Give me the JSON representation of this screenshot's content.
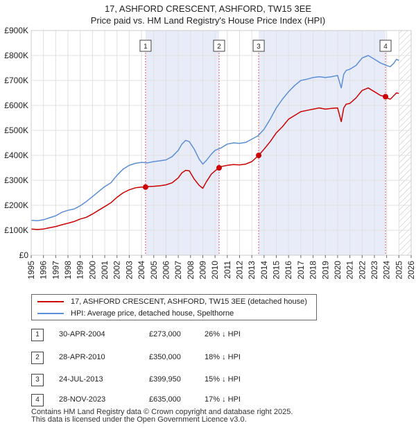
{
  "title": {
    "line1": "17, ASHFORD CRESCENT, ASHFORD, TW15 3EE",
    "line2": "Price paid vs. HM Land Registry's House Price Index (HPI)"
  },
  "colors": {
    "price_paid": "#cc0000",
    "hpi": "#5b8ed6",
    "shade": "#e8ecf8",
    "marker_line": "#e06060"
  },
  "legend": {
    "price_paid_label": "17, ASHFORD CRESCENT, ASHFORD, TW15 3EE (detached house)",
    "hpi_label": "HPI: Average price, detached house, Spelthorne"
  },
  "sales": [
    {
      "num": "1",
      "date": "30-APR-2004",
      "price": "£273,000",
      "hpi": "26% ↓ HPI"
    },
    {
      "num": "2",
      "date": "28-APR-2010",
      "price": "£350,000",
      "hpi": "18% ↓ HPI"
    },
    {
      "num": "3",
      "date": "24-JUL-2013",
      "price": "£399,950",
      "hpi": "15% ↓ HPI"
    },
    {
      "num": "4",
      "date": "28-NOV-2023",
      "price": "£635,000",
      "hpi": "17% ↓ HPI"
    }
  ],
  "footer": {
    "line1": "Contains HM Land Registry data © Crown copyright and database right 2025.",
    "line2": "This data is licensed under the Open Government Licence v3.0."
  },
  "chart_data": {
    "type": "line",
    "xlim": [
      1995,
      2026
    ],
    "ylim": [
      0,
      900000
    ],
    "x_ticks": [
      "1995",
      "1996",
      "1997",
      "1998",
      "1999",
      "2000",
      "2001",
      "2002",
      "2003",
      "2004",
      "2005",
      "2006",
      "2007",
      "2008",
      "2009",
      "2010",
      "2011",
      "2012",
      "2013",
      "2014",
      "2015",
      "2016",
      "2017",
      "2018",
      "2019",
      "2020",
      "2021",
      "2022",
      "2023",
      "2024",
      "2025",
      "2026"
    ],
    "y_ticks": [
      {
        "value": 0,
        "label": "£0"
      },
      {
        "value": 100000,
        "label": "£100K"
      },
      {
        "value": 200000,
        "label": "£200K"
      },
      {
        "value": 300000,
        "label": "£300K"
      },
      {
        "value": 400000,
        "label": "£400K"
      },
      {
        "value": 500000,
        "label": "£500K"
      },
      {
        "value": 600000,
        "label": "£600K"
      },
      {
        "value": 700000,
        "label": "£700K"
      },
      {
        "value": 800000,
        "label": "£800K"
      },
      {
        "value": 900000,
        "label": "£900K"
      }
    ],
    "grid": true,
    "shaded_ranges": [
      [
        2004.33,
        2010.33
      ],
      [
        2013.56,
        2023.91
      ]
    ],
    "future_hatch_from": 2025.0,
    "sale_markers": [
      {
        "label": "1",
        "x": 2004.33,
        "y": 273000
      },
      {
        "label": "2",
        "x": 2010.33,
        "y": 350000
      },
      {
        "label": "3",
        "x": 2013.56,
        "y": 399950
      },
      {
        "label": "4",
        "x": 2023.91,
        "y": 635000
      }
    ],
    "series": [
      {
        "name": "HPI: Average price, detached house, Spelthorne",
        "x": [
          1995,
          1995.5,
          1996,
          1996.5,
          1997,
          1997.5,
          1998,
          1998.5,
          1999,
          1999.5,
          2000,
          2000.5,
          2001,
          2001.5,
          2002,
          2002.5,
          2003,
          2003.5,
          2004,
          2004.5,
          2005,
          2005.5,
          2006,
          2006.5,
          2007,
          2007.3,
          2007.6,
          2007.9,
          2008.3,
          2008.7,
          2009,
          2009.3,
          2009.7,
          2010,
          2010.5,
          2011,
          2011.5,
          2012,
          2012.5,
          2013,
          2013.5,
          2014,
          2014.5,
          2015,
          2015.5,
          2016,
          2016.5,
          2017,
          2017.5,
          2018,
          2018.5,
          2019,
          2019.5,
          2020,
          2020.3,
          2020.5,
          2020.7,
          2021,
          2021.5,
          2022,
          2022.5,
          2023,
          2023.5,
          2024,
          2024.3,
          2024.6,
          2024.8,
          2025
        ],
        "values": [
          140000,
          138000,
          142000,
          150000,
          158000,
          172000,
          180000,
          185000,
          198000,
          215000,
          235000,
          255000,
          275000,
          290000,
          320000,
          345000,
          360000,
          368000,
          372000,
          370000,
          375000,
          378000,
          382000,
          395000,
          420000,
          445000,
          460000,
          455000,
          425000,
          385000,
          365000,
          380000,
          405000,
          420000,
          430000,
          445000,
          450000,
          448000,
          452000,
          465000,
          478000,
          505000,
          545000,
          590000,
          625000,
          655000,
          680000,
          700000,
          705000,
          712000,
          715000,
          712000,
          715000,
          720000,
          670000,
          725000,
          740000,
          745000,
          760000,
          790000,
          800000,
          785000,
          770000,
          760000,
          755000,
          770000,
          785000,
          780000
        ]
      },
      {
        "name": "17, ASHFORD CRESCENT, ASHFORD, TW15 3EE (detached house)",
        "x": [
          1995,
          1995.5,
          1996,
          1996.5,
          1997,
          1997.5,
          1998,
          1998.5,
          1999,
          1999.5,
          2000,
          2000.5,
          2001,
          2001.5,
          2002,
          2002.5,
          2003,
          2003.5,
          2004,
          2004.33,
          2004.5,
          2005,
          2005.5,
          2006,
          2006.5,
          2007,
          2007.3,
          2007.6,
          2007.9,
          2008.3,
          2008.7,
          2009,
          2009.3,
          2009.7,
          2010,
          2010.33,
          2010.5,
          2011,
          2011.5,
          2012,
          2012.5,
          2013,
          2013.56,
          2014,
          2014.5,
          2015,
          2015.5,
          2016,
          2016.5,
          2017,
          2017.5,
          2018,
          2018.5,
          2019,
          2019.5,
          2020,
          2020.3,
          2020.5,
          2020.7,
          2021,
          2021.5,
          2022,
          2022.5,
          2023,
          2023.5,
          2023.91,
          2024,
          2024.3,
          2024.6,
          2024.8,
          2025
        ],
        "values": [
          105000,
          103000,
          105000,
          110000,
          115000,
          122000,
          128000,
          135000,
          145000,
          152000,
          165000,
          180000,
          195000,
          210000,
          232000,
          250000,
          262000,
          270000,
          273000,
          273000,
          275000,
          276000,
          278000,
          282000,
          290000,
          310000,
          330000,
          340000,
          338000,
          305000,
          280000,
          268000,
          295000,
          325000,
          338000,
          350000,
          355000,
          360000,
          363000,
          362000,
          365000,
          375000,
          399950,
          425000,
          455000,
          490000,
          515000,
          545000,
          560000,
          575000,
          580000,
          585000,
          590000,
          585000,
          588000,
          590000,
          535000,
          590000,
          605000,
          608000,
          630000,
          660000,
          670000,
          655000,
          640000,
          635000,
          630000,
          625000,
          640000,
          650000,
          648000
        ]
      }
    ]
  }
}
